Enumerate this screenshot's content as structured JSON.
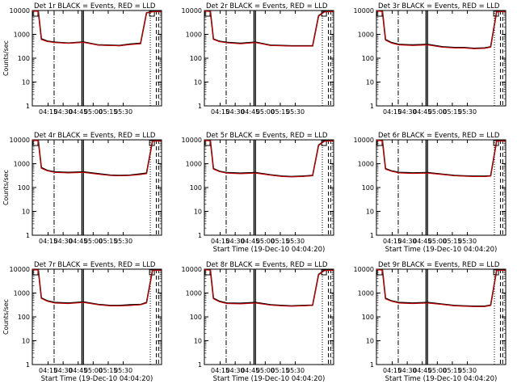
{
  "chart_data": [
    {
      "type": "line",
      "title": "Det 1r BLACK = Events, RED = LLD",
      "xlabel": "",
      "ylabel": "Counts/sec",
      "yscale": "log",
      "ylim": [
        1,
        10000
      ],
      "xticks": [
        "04:15",
        "04:30",
        "04:45",
        "05:00",
        "05:15",
        "05:30"
      ],
      "series": [
        {
          "color": "#000000",
          "x": [
            0,
            0.4,
            0.6,
            1.0,
            1.5,
            2.4,
            3.4,
            4.4,
            5.2,
            5.8,
            6.5,
            7.2,
            7.6,
            8.0,
            8.6
          ],
          "y": [
            9800,
            9500,
            650,
            520,
            470,
            430,
            480,
            360,
            350,
            340,
            390,
            420,
            8000,
            9000,
            9200
          ]
        },
        {
          "color": "#cc0000",
          "x": [
            0,
            0.4,
            0.6,
            1.0,
            1.5,
            2.4,
            3.4,
            4.4,
            5.2,
            5.8,
            6.5,
            7.2,
            7.6,
            8.0,
            8.6
          ],
          "y": [
            9500,
            9200,
            600,
            500,
            450,
            420,
            460,
            350,
            340,
            330,
            370,
            400,
            7800,
            8800,
            9000
          ]
        }
      ]
    },
    {
      "type": "line",
      "title": "Det 2r BLACK = Events, RED = LLD",
      "xlabel": "",
      "ylabel": "",
      "yscale": "log",
      "ylim": [
        1,
        10000
      ],
      "xticks": [
        "04:15",
        "04:30",
        "04:45",
        "05:00",
        "05:15",
        "05:30"
      ],
      "series": [
        {
          "color": "#000000",
          "x": [
            0,
            0.4,
            0.6,
            1.0,
            1.5,
            2.4,
            3.4,
            4.4,
            5.2,
            5.8,
            6.5,
            7.2,
            7.6,
            8.0,
            8.6
          ],
          "y": [
            9800,
            9400,
            640,
            510,
            460,
            420,
            470,
            350,
            340,
            330,
            330,
            330,
            6000,
            9000,
            9200
          ]
        },
        {
          "color": "#cc0000",
          "x": [
            0,
            0.4,
            0.6,
            1.0,
            1.5,
            2.4,
            3.4,
            4.4,
            5.2,
            5.8,
            6.5,
            7.2,
            7.6,
            8.0,
            8.6
          ],
          "y": [
            9500,
            9100,
            610,
            490,
            440,
            400,
            450,
            340,
            330,
            320,
            320,
            320,
            5800,
            8700,
            9000
          ]
        }
      ]
    },
    {
      "type": "line",
      "title": "Det 3r BLACK = Events, RED = LLD",
      "xlabel": "",
      "ylabel": "",
      "yscale": "log",
      "ylim": [
        1,
        10000
      ],
      "xticks": [
        "04:15",
        "04:30",
        "04:45",
        "05:00",
        "05:15",
        "05:30"
      ],
      "series": [
        {
          "color": "#000000",
          "x": [
            0,
            0.4,
            0.6,
            1.0,
            1.5,
            2.4,
            3.4,
            4.4,
            5.2,
            5.8,
            6.5,
            7.2,
            7.6,
            8.0,
            8.6
          ],
          "y": [
            9800,
            9400,
            600,
            450,
            380,
            360,
            380,
            300,
            280,
            280,
            260,
            270,
            300,
            9000,
            9200
          ]
        },
        {
          "color": "#cc0000",
          "x": [
            0,
            0.4,
            0.6,
            1.0,
            1.5,
            2.4,
            3.4,
            4.4,
            5.2,
            5.8,
            6.5,
            7.2,
            7.6,
            8.0,
            8.6
          ],
          "y": [
            9500,
            9100,
            570,
            430,
            360,
            340,
            360,
            290,
            270,
            270,
            250,
            260,
            290,
            8800,
            9000
          ]
        }
      ]
    },
    {
      "type": "line",
      "title": "Det 4r BLACK = Events, RED = LLD",
      "xlabel": "",
      "ylabel": "Counts/sec",
      "yscale": "log",
      "ylim": [
        1,
        10000
      ],
      "xticks": [
        "04:15",
        "04:30",
        "04:45",
        "05:00",
        "05:15",
        "05:30"
      ],
      "series": [
        {
          "color": "#000000",
          "x": [
            0,
            0.4,
            0.6,
            1.0,
            1.5,
            2.4,
            3.4,
            4.4,
            5.2,
            5.8,
            6.5,
            7.2,
            7.6,
            8.0,
            8.6
          ],
          "y": [
            9800,
            9500,
            680,
            520,
            450,
            430,
            450,
            380,
            330,
            320,
            330,
            370,
            400,
            9000,
            9200
          ]
        },
        {
          "color": "#cc0000",
          "x": [
            0,
            0.4,
            0.6,
            1.0,
            1.5,
            2.4,
            3.4,
            4.4,
            5.2,
            5.8,
            6.5,
            7.2,
            7.6,
            8.0,
            8.6
          ],
          "y": [
            9500,
            9200,
            640,
            500,
            430,
            410,
            430,
            360,
            320,
            310,
            320,
            350,
            380,
            8800,
            9000
          ]
        }
      ]
    },
    {
      "type": "line",
      "title": "Det 5r BLACK = Events, RED = LLD",
      "xlabel": "Start Time (19-Dec-10 04:04:20)",
      "ylabel": "",
      "yscale": "log",
      "ylim": [
        1,
        10000
      ],
      "xticks": [
        "04:15",
        "04:30",
        "04:45",
        "05:00",
        "05:15",
        "05:30"
      ],
      "series": [
        {
          "color": "#000000",
          "x": [
            0,
            0.4,
            0.6,
            1.0,
            1.5,
            2.4,
            3.4,
            4.4,
            5.2,
            5.8,
            6.5,
            7.2,
            7.6,
            8.0,
            8.6
          ],
          "y": [
            9800,
            9400,
            620,
            480,
            420,
            400,
            420,
            340,
            300,
            290,
            300,
            320,
            6000,
            9000,
            9200
          ]
        },
        {
          "color": "#cc0000",
          "x": [
            0,
            0.4,
            0.6,
            1.0,
            1.5,
            2.4,
            3.4,
            4.4,
            5.2,
            5.8,
            6.5,
            7.2,
            7.6,
            8.0,
            8.6
          ],
          "y": [
            9500,
            9100,
            590,
            460,
            400,
            380,
            400,
            330,
            290,
            280,
            290,
            310,
            5800,
            8700,
            9000
          ]
        }
      ]
    },
    {
      "type": "line",
      "title": "Det 6r BLACK = Events, RED = LLD",
      "xlabel": "Start Time (19-Dec-10 04:04:20)",
      "ylabel": "",
      "yscale": "log",
      "ylim": [
        1,
        10000
      ],
      "xticks": [
        "04:15",
        "04:30",
        "04:45",
        "05:00",
        "05:15",
        "05:30"
      ],
      "series": [
        {
          "color": "#000000",
          "x": [
            0,
            0.4,
            0.6,
            1.0,
            1.5,
            2.4,
            3.4,
            4.4,
            5.2,
            5.8,
            6.5,
            7.2,
            7.6,
            8.0,
            8.6
          ],
          "y": [
            9800,
            9400,
            620,
            500,
            430,
            410,
            420,
            360,
            320,
            310,
            300,
            300,
            310,
            9000,
            9200
          ]
        },
        {
          "color": "#cc0000",
          "x": [
            0,
            0.4,
            0.6,
            1.0,
            1.5,
            2.4,
            3.4,
            4.4,
            5.2,
            5.8,
            6.5,
            7.2,
            7.6,
            8.0,
            8.6
          ],
          "y": [
            9500,
            9100,
            590,
            480,
            410,
            390,
            400,
            350,
            310,
            300,
            290,
            290,
            300,
            8800,
            9000
          ]
        }
      ]
    },
    {
      "type": "line",
      "title": "Det 7r BLACK = Events, RED = LLD",
      "xlabel": "Start Time (19-Dec-10 04:04:20)",
      "ylabel": "Counts/sec",
      "yscale": "log",
      "ylim": [
        1,
        10000
      ],
      "xticks": [
        "04:15",
        "04:30",
        "04:45",
        "05:00",
        "05:15",
        "05:30"
      ],
      "series": [
        {
          "color": "#000000",
          "x": [
            0,
            0.4,
            0.6,
            1.0,
            1.5,
            2.4,
            3.4,
            4.4,
            5.2,
            5.8,
            6.5,
            7.2,
            7.6,
            8.0,
            8.6
          ],
          "y": [
            9800,
            9500,
            620,
            470,
            400,
            380,
            420,
            330,
            300,
            300,
            320,
            330,
            400,
            9000,
            9200
          ]
        },
        {
          "color": "#cc0000",
          "x": [
            0,
            0.4,
            0.6,
            1.0,
            1.5,
            2.4,
            3.4,
            4.4,
            5.2,
            5.8,
            6.5,
            7.2,
            7.6,
            8.0,
            8.6
          ],
          "y": [
            9500,
            9200,
            590,
            450,
            380,
            360,
            400,
            320,
            290,
            290,
            300,
            320,
            380,
            8800,
            9000
          ]
        }
      ]
    },
    {
      "type": "line",
      "title": "Det 8r BLACK = Events, RED = LLD",
      "xlabel": "Start Time (19-Dec-10 04:04:20)",
      "ylabel": "",
      "yscale": "log",
      "ylim": [
        1,
        10000
      ],
      "xticks": [
        "04:15",
        "04:30",
        "04:45",
        "05:00",
        "05:15",
        "05:30"
      ],
      "series": [
        {
          "color": "#000000",
          "x": [
            0,
            0.4,
            0.6,
            1.0,
            1.5,
            2.4,
            3.4,
            4.4,
            5.2,
            5.8,
            6.5,
            7.2,
            7.6,
            8.0,
            8.6
          ],
          "y": [
            9800,
            9400,
            600,
            450,
            380,
            370,
            400,
            320,
            300,
            290,
            300,
            310,
            6000,
            9000,
            9200
          ]
        },
        {
          "color": "#cc0000",
          "x": [
            0,
            0.4,
            0.6,
            1.0,
            1.5,
            2.4,
            3.4,
            4.4,
            5.2,
            5.8,
            6.5,
            7.2,
            7.6,
            8.0,
            8.6
          ],
          "y": [
            9500,
            9100,
            570,
            430,
            360,
            350,
            380,
            310,
            290,
            280,
            290,
            300,
            5800,
            8700,
            9000
          ]
        }
      ]
    },
    {
      "type": "line",
      "title": "Det 9r BLACK = Events, RED = LLD",
      "xlabel": "Start Time (19-Dec-10 04:04:20)",
      "ylabel": "",
      "yscale": "log",
      "ylim": [
        1,
        10000
      ],
      "xticks": [
        "04:15",
        "04:30",
        "04:45",
        "05:00",
        "05:15",
        "05:30"
      ],
      "series": [
        {
          "color": "#000000",
          "x": [
            0,
            0.4,
            0.6,
            1.0,
            1.5,
            2.4,
            3.4,
            4.4,
            5.2,
            5.8,
            6.5,
            7.2,
            7.6,
            8.0,
            8.6
          ],
          "y": [
            9800,
            9400,
            600,
            470,
            400,
            380,
            400,
            340,
            300,
            290,
            280,
            280,
            310,
            9000,
            9200
          ]
        },
        {
          "color": "#cc0000",
          "x": [
            0,
            0.4,
            0.6,
            1.0,
            1.5,
            2.4,
            3.4,
            4.4,
            5.2,
            5.8,
            6.5,
            7.2,
            7.6,
            8.0,
            8.6
          ],
          "y": [
            9500,
            9100,
            570,
            450,
            380,
            360,
            380,
            330,
            290,
            280,
            270,
            270,
            300,
            8800,
            9000
          ]
        }
      ]
    }
  ],
  "yticks": [
    "1",
    "10",
    "100",
    "1000",
    "10000"
  ]
}
